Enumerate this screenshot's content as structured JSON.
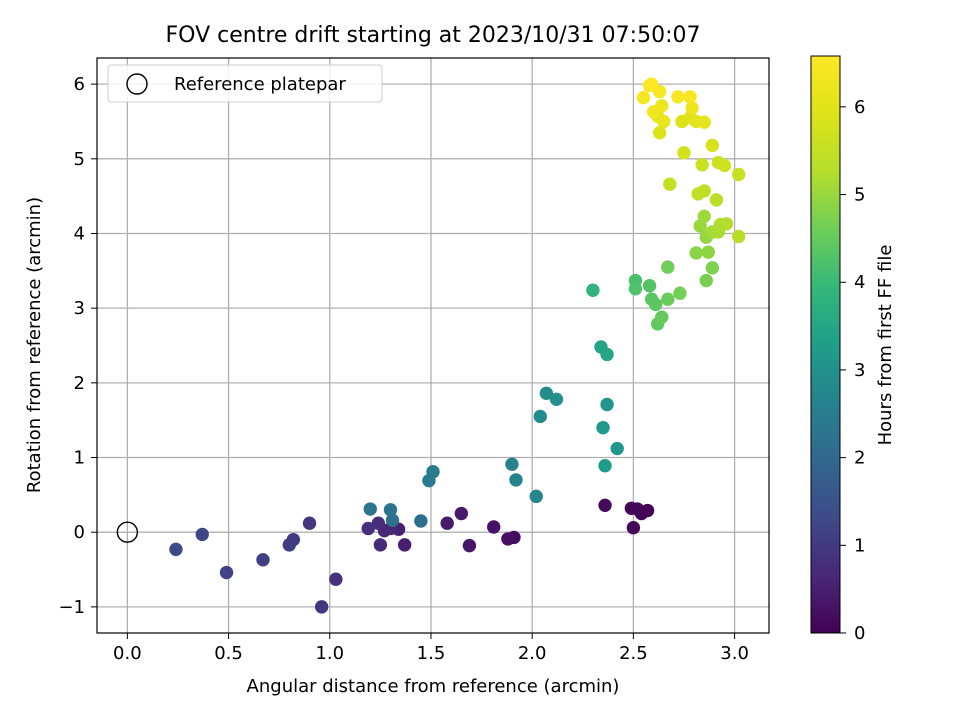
{
  "chart_data": {
    "type": "scatter",
    "title": "FOV centre drift starting at 2023/10/31 07:50:07",
    "xlabel": "Angular distance from reference (arcmin)",
    "ylabel": "Rotation from reference (arcmin)",
    "xlim": [
      -0.15,
      3.17
    ],
    "ylim": [
      -1.35,
      6.35
    ],
    "xticks": [
      0.0,
      0.5,
      1.0,
      1.5,
      2.0,
      2.5,
      3.0
    ],
    "xtick_labels": [
      "0.0",
      "0.5",
      "1.0",
      "1.5",
      "2.0",
      "2.5",
      "3.0"
    ],
    "yticks": [
      -1,
      0,
      1,
      2,
      3,
      4,
      5,
      6
    ],
    "ytick_labels": [
      "−1",
      "0",
      "1",
      "2",
      "3",
      "4",
      "5",
      "6"
    ],
    "grid": true,
    "legend": {
      "placement": "top-left",
      "entries": [
        "Reference platepar"
      ]
    },
    "reference_point": {
      "x": 0.0,
      "y": 0.0,
      "label": "Reference platepar"
    },
    "colorbar": {
      "label": "Hours from first FF file",
      "range": [
        0,
        6.58
      ],
      "ticks": [
        0,
        1,
        2,
        3,
        4,
        5,
        6
      ],
      "colormap": "viridis"
    },
    "points": [
      [
        2.57,
        0.29,
        0.0
      ],
      [
        2.54,
        0.25,
        0.03
      ],
      [
        2.52,
        0.31,
        0.06
      ],
      [
        2.49,
        0.32,
        0.09
      ],
      [
        2.5,
        0.06,
        0.12
      ],
      [
        2.36,
        0.36,
        0.15
      ],
      [
        1.91,
        -0.07,
        0.2
      ],
      [
        1.88,
        -0.09,
        0.25
      ],
      [
        1.81,
        0.07,
        0.3
      ],
      [
        1.69,
        -0.18,
        0.35
      ],
      [
        1.65,
        0.25,
        0.4
      ],
      [
        1.58,
        0.12,
        0.45
      ],
      [
        1.37,
        -0.17,
        0.5
      ],
      [
        1.34,
        0.04,
        0.55
      ],
      [
        1.3,
        0.05,
        0.6
      ],
      [
        1.27,
        0.02,
        0.65
      ],
      [
        1.25,
        -0.17,
        0.7
      ],
      [
        1.24,
        0.12,
        0.75
      ],
      [
        1.19,
        0.05,
        0.8
      ],
      [
        1.03,
        -0.63,
        0.85
      ],
      [
        0.96,
        -1.0,
        0.9
      ],
      [
        0.9,
        0.12,
        0.95
      ],
      [
        0.82,
        -0.1,
        1.0
      ],
      [
        0.8,
        -0.17,
        1.05
      ],
      [
        0.67,
        -0.37,
        1.1
      ],
      [
        0.49,
        -0.54,
        1.15
      ],
      [
        0.37,
        -0.03,
        1.25
      ],
      [
        0.24,
        -0.23,
        1.35
      ],
      [
        1.45,
        0.15,
        2.15
      ],
      [
        1.31,
        0.16,
        2.2
      ],
      [
        1.3,
        0.3,
        2.25
      ],
      [
        1.2,
        0.31,
        2.3
      ],
      [
        1.49,
        0.69,
        2.4
      ],
      [
        1.51,
        0.81,
        2.45
      ],
      [
        1.9,
        0.91,
        2.6
      ],
      [
        1.92,
        0.7,
        2.65
      ],
      [
        2.02,
        0.48,
        2.75
      ],
      [
        2.04,
        1.55,
        2.85
      ],
      [
        2.07,
        1.86,
        2.9
      ],
      [
        2.12,
        1.78,
        2.95
      ],
      [
        2.37,
        1.71,
        3.05
      ],
      [
        2.42,
        1.12,
        3.1
      ],
      [
        2.35,
        1.4,
        3.15
      ],
      [
        2.36,
        0.89,
        3.25
      ],
      [
        2.34,
        2.48,
        3.45
      ],
      [
        2.37,
        2.38,
        3.5
      ],
      [
        2.3,
        3.24,
        3.85
      ],
      [
        2.51,
        3.37,
        4.2
      ],
      [
        2.51,
        3.26,
        4.25
      ],
      [
        2.58,
        3.3,
        4.3
      ],
      [
        2.59,
        3.12,
        4.35
      ],
      [
        2.61,
        3.05,
        4.4
      ],
      [
        2.62,
        2.79,
        4.45
      ],
      [
        2.64,
        2.88,
        4.5
      ],
      [
        2.67,
        3.12,
        4.55
      ],
      [
        2.67,
        3.55,
        4.6
      ],
      [
        2.73,
        3.2,
        4.65
      ],
      [
        2.86,
        3.37,
        4.7
      ],
      [
        2.89,
        3.54,
        4.75
      ],
      [
        2.81,
        3.74,
        4.85
      ],
      [
        2.87,
        3.75,
        4.9
      ],
      [
        2.86,
        3.95,
        4.95
      ],
      [
        2.83,
        4.1,
        5.0
      ],
      [
        2.85,
        4.23,
        5.05
      ],
      [
        2.89,
        4.02,
        5.1
      ],
      [
        2.92,
        4.02,
        5.15
      ],
      [
        2.93,
        4.12,
        5.2
      ],
      [
        2.96,
        4.13,
        5.25
      ],
      [
        3.02,
        3.96,
        5.3
      ],
      [
        2.91,
        4.45,
        5.35
      ],
      [
        2.85,
        4.57,
        5.4
      ],
      [
        2.82,
        4.53,
        5.45
      ],
      [
        2.68,
        4.66,
        5.5
      ],
      [
        3.02,
        4.79,
        5.55
      ],
      [
        2.84,
        4.92,
        5.6
      ],
      [
        2.92,
        4.95,
        5.65
      ],
      [
        2.95,
        4.91,
        5.7
      ],
      [
        2.75,
        5.08,
        5.75
      ],
      [
        2.89,
        5.18,
        5.8
      ],
      [
        2.63,
        5.35,
        5.9
      ],
      [
        2.74,
        5.5,
        5.95
      ],
      [
        2.78,
        5.55,
        6.0
      ],
      [
        2.81,
        5.5,
        6.05
      ],
      [
        2.85,
        5.49,
        6.1
      ],
      [
        2.65,
        5.5,
        6.15
      ],
      [
        2.62,
        5.57,
        6.2
      ],
      [
        2.64,
        5.71,
        6.25
      ],
      [
        2.79,
        5.68,
        6.3
      ],
      [
        2.6,
        5.63,
        6.35
      ],
      [
        2.55,
        5.82,
        6.4
      ],
      [
        2.63,
        5.9,
        6.45
      ],
      [
        2.72,
        5.83,
        6.5
      ],
      [
        2.78,
        5.83,
        6.52
      ],
      [
        2.58,
        5.98,
        6.55
      ],
      [
        2.59,
        6.0,
        6.58
      ]
    ]
  }
}
